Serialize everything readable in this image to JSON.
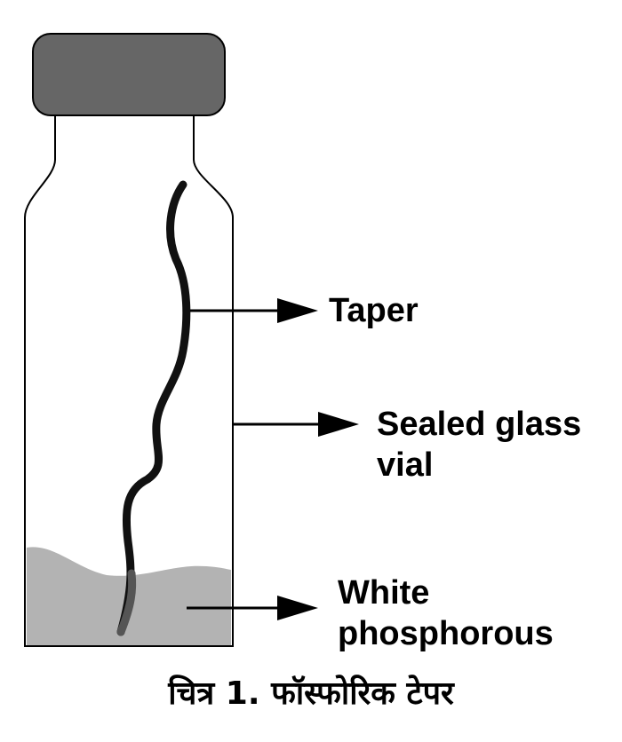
{
  "diagram": {
    "labels": {
      "taper": "Taper",
      "vial_line1": "Sealed glass",
      "vial_line2": "vial",
      "phosphorous_line1": "White",
      "phosphorous_line2": "phosphorous"
    },
    "caption": "चित्र 1. फॉस्फोरिक टेपर",
    "colors": {
      "cap": "#666666",
      "phosphorous": "#b3b3b3",
      "outline": "#000000",
      "taper": "#111111"
    }
  }
}
